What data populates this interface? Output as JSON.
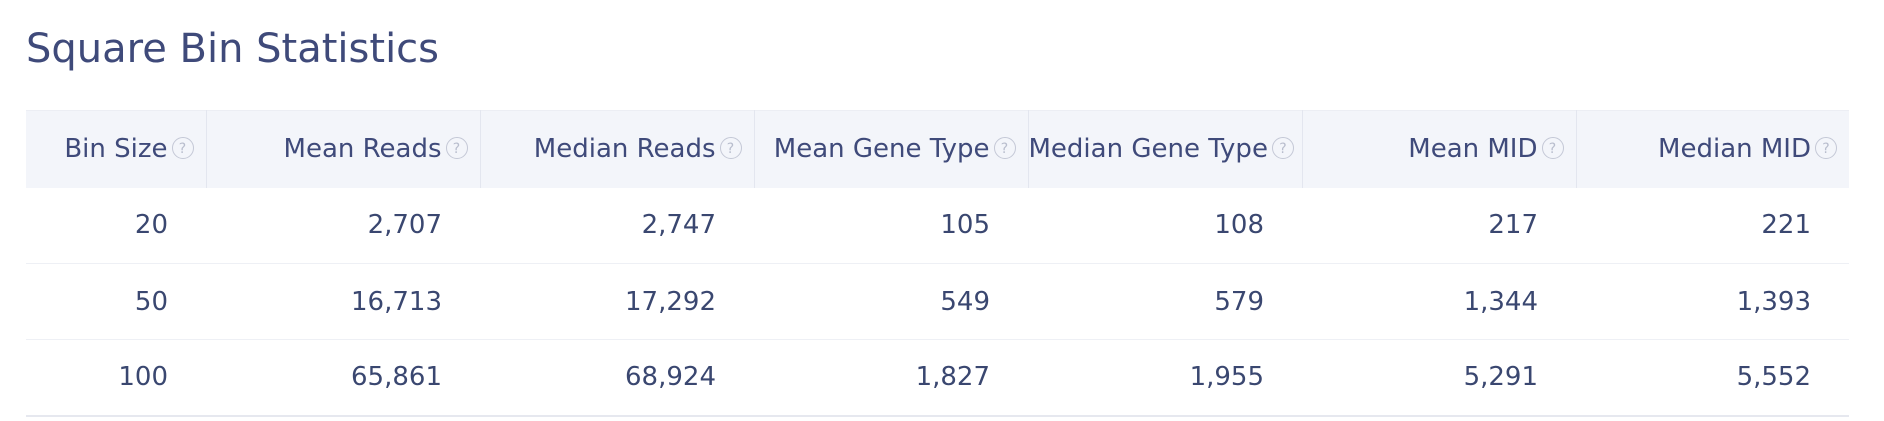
{
  "title": "Square Bin Statistics",
  "table": {
    "headers": [
      {
        "label": "Bin Size"
      },
      {
        "label": "Mean Reads"
      },
      {
        "label": "Median Reads"
      },
      {
        "label": "Mean Gene Type"
      },
      {
        "label": "Median Gene Type"
      },
      {
        "label": "Mean MID"
      },
      {
        "label": "Median MID"
      }
    ],
    "help_glyph": "?",
    "rows": [
      [
        "20",
        "2,707",
        "2,747",
        "105",
        "108",
        "217",
        "221"
      ],
      [
        "50",
        "16,713",
        "17,292",
        "549",
        "579",
        "1,344",
        "1,393"
      ],
      [
        "100",
        "65,861",
        "68,924",
        "1,827",
        "1,955",
        "5,291",
        "5,552"
      ]
    ]
  }
}
